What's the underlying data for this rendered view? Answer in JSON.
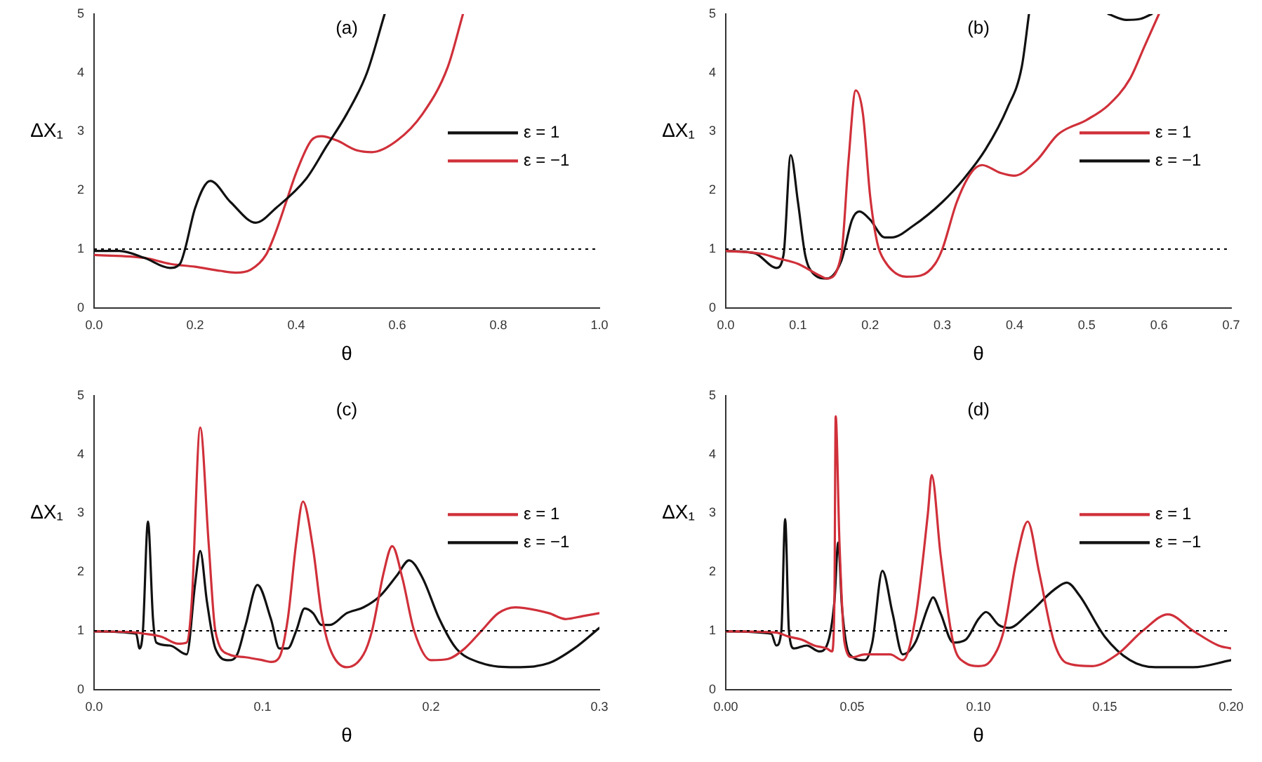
{
  "chart_data": [
    {
      "type": "line",
      "title": "(a)",
      "xlabel": "θ",
      "ylabel": "ΔX₁",
      "legend": "right",
      "grid": false,
      "marker": "none",
      "line_style": "solid",
      "xlim": [
        0,
        1
      ],
      "xticks": [
        {
          "value": 0,
          "label": "0.0"
        },
        0.2,
        0.4,
        0.6,
        0.8,
        {
          "value": 1,
          "label": "1.0"
        }
      ],
      "ylim": [
        0,
        5
      ],
      "yticks": [
        0,
        1,
        2,
        3,
        4,
        5
      ],
      "ref_lines": [
        {
          "axis": "y",
          "value": 1,
          "color": "#000000",
          "line_style": "dotted"
        }
      ],
      "series": [
        {
          "name": "ε = 1",
          "color": "#111111",
          "x": [
            0,
            0.05,
            0.1,
            0.15,
            0.17,
            0.18,
            0.2,
            0.23,
            0.27,
            0.32,
            0.36,
            0.42,
            0.46,
            0.5,
            0.54,
            0.575
          ],
          "values": [
            0.97,
            0.97,
            0.85,
            0.68,
            0.75,
            1.0,
            1.7,
            2.16,
            1.8,
            1.45,
            1.7,
            2.2,
            2.75,
            3.3,
            4.0,
            5.0
          ]
        },
        {
          "name": "ε = −1",
          "color": "#d0303a",
          "x": [
            0,
            0.1,
            0.15,
            0.2,
            0.25,
            0.28,
            0.31,
            0.34,
            0.36,
            0.38,
            0.4,
            0.43,
            0.45,
            0.48,
            0.52,
            0.55,
            0.6,
            0.65,
            0.7,
            0.73
          ],
          "values": [
            0.9,
            0.85,
            0.75,
            0.7,
            0.63,
            0.6,
            0.65,
            0.9,
            1.3,
            1.8,
            2.3,
            2.85,
            2.92,
            2.85,
            2.68,
            2.65,
            2.85,
            3.3,
            4.1,
            5.0
          ]
        }
      ]
    },
    {
      "type": "line",
      "title": "(b)",
      "xlabel": "θ",
      "ylabel": "ΔX₁",
      "legend": "right",
      "grid": false,
      "marker": "none",
      "line_style": "solid",
      "xlim": [
        0,
        0.7
      ],
      "xticks": [
        {
          "value": 0,
          "label": "0.0"
        },
        0.1,
        0.2,
        0.3,
        0.4,
        0.5,
        0.6,
        0.7
      ],
      "ylim": [
        0,
        5
      ],
      "yticks": [
        0,
        1,
        2,
        3,
        4,
        5
      ],
      "ref_lines": [
        {
          "axis": "y",
          "value": 1,
          "color": "#000000",
          "line_style": "dotted"
        }
      ],
      "series": [
        {
          "name": "ε = 1",
          "color": "#d0303a",
          "x": [
            0,
            0.05,
            0.07,
            0.1,
            0.13,
            0.14,
            0.16,
            0.17,
            0.18,
            0.19,
            0.2,
            0.21,
            0.22,
            0.25,
            0.27,
            0.29,
            0.3,
            0.32,
            0.34,
            0.355,
            0.38,
            0.4,
            0.43,
            0.46,
            0.5,
            0.53,
            0.56,
            0.58,
            0.6
          ],
          "values": [
            0.97,
            0.92,
            0.85,
            0.75,
            0.55,
            0.5,
            0.9,
            2.5,
            3.7,
            3.3,
            1.9,
            1.1,
            0.8,
            0.53,
            0.55,
            0.75,
            1.0,
            1.8,
            2.3,
            2.43,
            2.3,
            2.25,
            2.5,
            2.95,
            3.2,
            3.45,
            3.9,
            4.45,
            5.0
          ]
        },
        {
          "name": "ε = −1",
          "color": "#111111",
          "x": [
            0,
            0.04,
            0.065,
            0.07,
            0.08,
            0.09,
            0.1,
            0.11,
            0.12,
            0.14,
            0.16,
            0.175,
            0.185,
            0.2,
            0.22,
            0.23,
            0.26,
            0.3,
            0.33,
            0.36,
            0.39,
            0.41,
            0.42,
            0.47,
            0.53,
            0.555,
            0.575,
            0.59
          ],
          "values": [
            0.97,
            0.93,
            0.7,
            0.68,
            0.9,
            2.6,
            1.8,
            0.9,
            0.6,
            0.5,
            0.8,
            1.5,
            1.64,
            1.5,
            1.2,
            1.2,
            1.4,
            1.8,
            2.2,
            2.7,
            3.4,
            4.1,
            5.0,
            null,
            5.0,
            4.9,
            4.92,
            5.0
          ]
        }
      ]
    },
    {
      "type": "line",
      "title": "(c)",
      "xlabel": "θ",
      "ylabel": "ΔX₁",
      "legend": "right",
      "grid": false,
      "marker": "none",
      "line_style": "solid",
      "xlim": [
        0,
        0.3
      ],
      "xticks": [
        {
          "value": 0,
          "label": "0.0"
        },
        0.1,
        0.2,
        0.3
      ],
      "ylim": [
        0,
        5
      ],
      "yticks": [
        0,
        1,
        2,
        3,
        4,
        5
      ],
      "ref_lines": [
        {
          "axis": "y",
          "value": 1,
          "color": "#000000",
          "line_style": "dotted"
        }
      ],
      "series": [
        {
          "name": "ε = 1",
          "color": "#d0303a",
          "x": [
            0,
            0.02,
            0.03,
            0.04,
            0.05,
            0.055,
            0.058,
            0.063,
            0.068,
            0.072,
            0.08,
            0.09,
            0.1,
            0.105,
            0.11,
            0.115,
            0.12,
            0.124,
            0.13,
            0.135,
            0.14,
            0.15,
            0.16,
            0.165,
            0.172,
            0.177,
            0.183,
            0.19,
            0.2,
            0.21,
            0.22,
            0.23,
            0.24,
            0.25,
            0.27,
            0.28,
            0.29,
            0.3
          ],
          "values": [
            0.99,
            0.98,
            0.95,
            0.9,
            0.78,
            0.8,
            1.5,
            4.46,
            2.5,
            1.0,
            0.6,
            0.55,
            0.5,
            0.47,
            0.55,
            1.2,
            2.5,
            3.2,
            2.4,
            1.3,
            0.7,
            0.38,
            0.6,
            1.0,
            2.0,
            2.44,
            1.9,
            1.0,
            0.5,
            0.52,
            0.7,
            1.0,
            1.3,
            1.4,
            1.3,
            1.2,
            1.25,
            1.3
          ]
        },
        {
          "name": "ε = −1",
          "color": "#111111",
          "x": [
            0,
            0.025,
            0.027,
            0.029,
            0.032,
            0.035,
            0.037,
            0.045,
            0.055,
            0.06,
            0.063,
            0.067,
            0.072,
            0.08,
            0.085,
            0.09,
            0.097,
            0.105,
            0.11,
            0.115,
            0.12,
            0.125,
            0.13,
            0.135,
            0.14,
            0.15,
            0.16,
            0.17,
            0.18,
            0.187,
            0.195,
            0.205,
            0.215,
            0.23,
            0.25,
            0.27,
            0.285,
            0.3
          ],
          "values": [
            0.99,
            0.95,
            0.7,
            1.0,
            2.86,
            1.2,
            0.8,
            0.75,
            0.6,
            1.8,
            2.36,
            1.5,
            0.7,
            0.5,
            0.6,
            1.1,
            1.78,
            1.2,
            0.7,
            0.7,
            1.0,
            1.38,
            1.3,
            1.1,
            1.1,
            1.3,
            1.4,
            1.6,
            1.95,
            2.2,
            1.9,
            1.2,
            0.7,
            0.45,
            0.38,
            0.45,
            0.7,
            1.05
          ]
        }
      ]
    },
    {
      "type": "line",
      "title": "(d)",
      "xlabel": "θ",
      "ylabel": "ΔX₁",
      "legend": "right",
      "grid": false,
      "marker": "none",
      "line_style": "solid",
      "xlim": [
        0,
        0.2
      ],
      "xticks": [
        {
          "value": 0,
          "label": "0.00"
        },
        0.05,
        {
          "value": 0.1,
          "label": "0.10"
        },
        0.15,
        {
          "value": 0.2,
          "label": "0.20"
        }
      ],
      "ylim": [
        0,
        5
      ],
      "yticks": [
        0,
        1,
        2,
        3,
        4,
        5
      ],
      "ref_lines": [
        {
          "axis": "y",
          "value": 1,
          "color": "#000000",
          "line_style": "dotted"
        }
      ],
      "series": [
        {
          "name": "ε = 1",
          "color": "#d0303a",
          "x": [
            0,
            0.02,
            0.025,
            0.03,
            0.035,
            0.04,
            0.042,
            0.043,
            0.0435,
            0.045,
            0.047,
            0.05,
            0.055,
            0.06,
            0.065,
            0.07,
            0.075,
            0.08,
            0.0815,
            0.085,
            0.09,
            0.095,
            0.1,
            0.105,
            0.11,
            0.115,
            0.1195,
            0.124,
            0.13,
            0.135,
            0.145,
            0.155,
            0.165,
            0.175,
            0.185,
            0.195,
            0.2
          ],
          "values": [
            0.99,
            0.97,
            0.9,
            0.85,
            0.75,
            0.7,
            0.65,
            1.5,
            4.65,
            2.5,
            0.8,
            0.55,
            0.6,
            0.6,
            0.6,
            0.5,
            1.2,
            3.0,
            3.65,
            2.3,
            0.8,
            0.45,
            0.4,
            0.5,
            1.0,
            2.2,
            2.86,
            2.0,
            0.8,
            0.45,
            0.4,
            0.6,
            1.0,
            1.28,
            1.0,
            0.75,
            0.7
          ]
        },
        {
          "name": "ε = −1",
          "color": "#111111",
          "x": [
            0,
            0.018,
            0.02,
            0.022,
            0.0235,
            0.025,
            0.027,
            0.032,
            0.037,
            0.04,
            0.043,
            0.0445,
            0.046,
            0.049,
            0.055,
            0.058,
            0.062,
            0.066,
            0.07,
            0.075,
            0.08,
            0.082,
            0.085,
            0.09,
            0.095,
            0.1,
            0.103,
            0.108,
            0.112,
            0.12,
            0.13,
            0.135,
            0.14,
            0.15,
            0.16,
            0.17,
            0.185,
            0.2
          ],
          "values": [
            0.99,
            0.95,
            0.75,
            1.0,
            2.9,
            1.0,
            0.7,
            0.75,
            0.65,
            0.75,
            1.5,
            2.5,
            1.4,
            0.6,
            0.5,
            0.8,
            2.02,
            1.3,
            0.6,
            0.8,
            1.4,
            1.57,
            1.3,
            0.8,
            0.85,
            1.2,
            1.32,
            1.1,
            1.05,
            1.3,
            1.7,
            1.82,
            1.6,
            0.9,
            0.5,
            0.38,
            0.38,
            0.5
          ]
        }
      ]
    }
  ]
}
